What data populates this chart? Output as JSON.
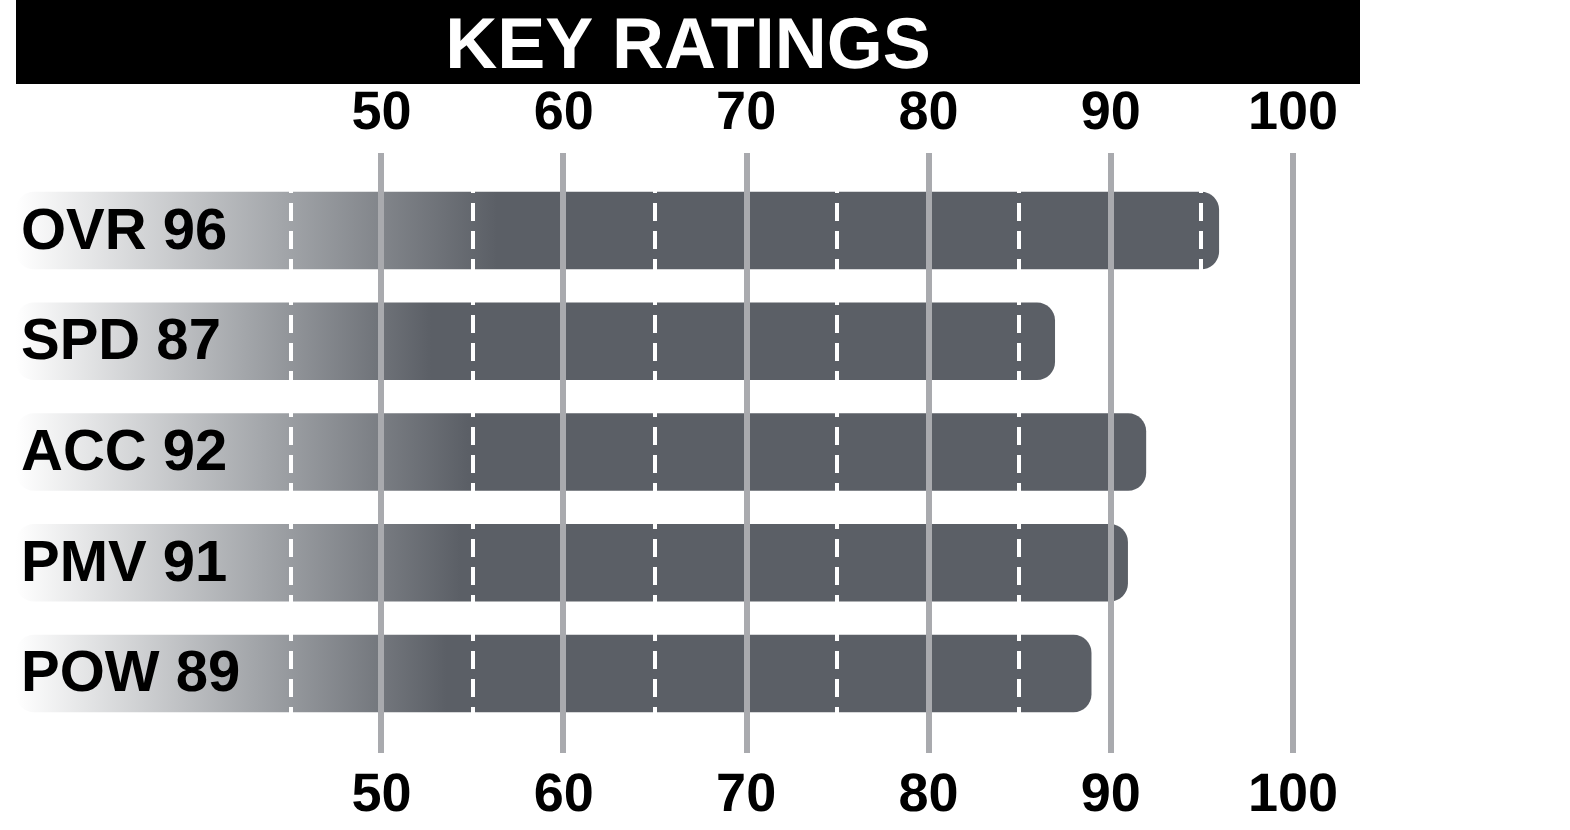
{
  "chart_data": {
    "type": "bar",
    "title": "KEY RATINGS",
    "orientation": "horizontal",
    "categories": [
      "OVR 96",
      "SPD 87",
      "ACC 92",
      "PMV 91",
      "POW 89"
    ],
    "values": [
      96,
      87,
      92,
      91,
      89
    ],
    "color": "#5b5f66",
    "xlim": [
      30,
      100
    ],
    "xticks": [
      {
        "value": 45,
        "label": null
      },
      50,
      {
        "value": 55,
        "label": null
      },
      60,
      {
        "value": 65,
        "label": null
      },
      70,
      {
        "value": 75,
        "label": null
      },
      80,
      {
        "value": 85,
        "label": null
      },
      90,
      {
        "value": 95,
        "label": null
      },
      100
    ],
    "x2lim": [
      30,
      100
    ],
    "x2ticks": [
      50,
      60,
      70,
      80,
      90,
      100
    ],
    "grid": "x"
  }
}
